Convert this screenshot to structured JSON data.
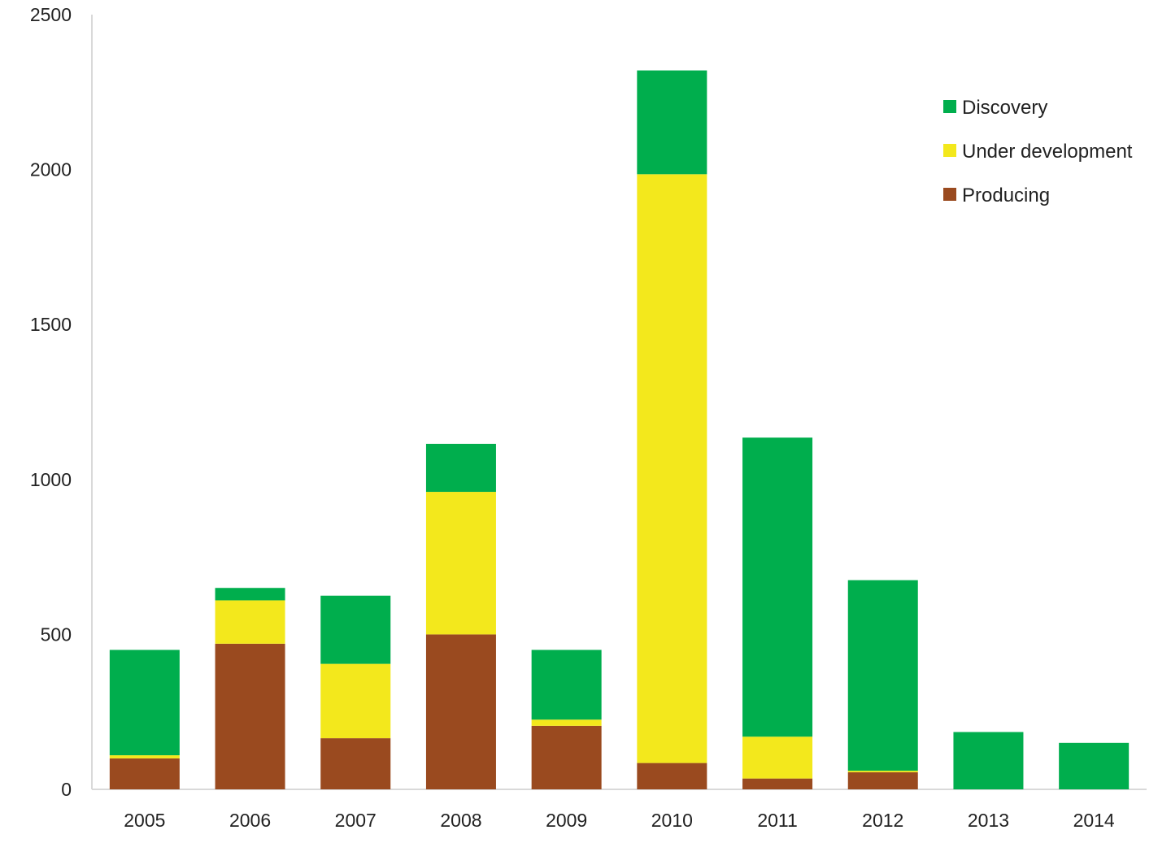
{
  "chart_data": {
    "type": "bar",
    "stacked": true,
    "title": "",
    "xlabel": "",
    "ylabel": "",
    "categories": [
      "2005",
      "2006",
      "2007",
      "2008",
      "2009",
      "2010",
      "2011",
      "2012",
      "2013",
      "2014"
    ],
    "ylim": [
      0,
      2500
    ],
    "yticks": [
      0,
      500,
      1000,
      1500,
      2000,
      2500
    ],
    "ytick_labels": [
      "0",
      "500",
      "1000",
      "1500",
      "2000",
      "2500"
    ],
    "grid": false,
    "legend_position": "top-right",
    "series": [
      {
        "name": "Producing",
        "color": "#9a4a1f",
        "values": [
          100,
          470,
          165,
          500,
          205,
          85,
          35,
          55,
          0,
          0
        ]
      },
      {
        "name": "Under development",
        "color": "#f3e81c",
        "values": [
          10,
          140,
          240,
          460,
          20,
          1900,
          135,
          5,
          0,
          0
        ]
      },
      {
        "name": "Discovery",
        "color": "#00ae4d",
        "values": [
          340,
          40,
          220,
          155,
          225,
          335,
          965,
          615,
          185,
          150
        ]
      }
    ],
    "legend_order": [
      "Discovery",
      "Under development",
      "Producing"
    ]
  }
}
